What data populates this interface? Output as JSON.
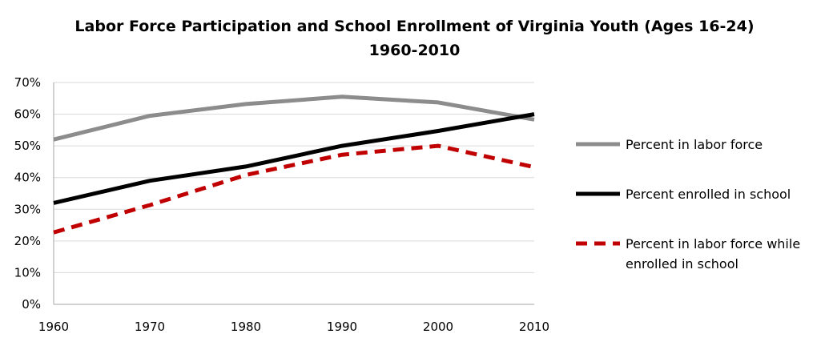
{
  "chart_data": {
    "type": "line",
    "title": "Labor Force Participation and School Enrollment of Virginia Youth (Ages 16-24)",
    "subtitle": "1960-2010",
    "x": [
      1960,
      1970,
      1980,
      1990,
      2000,
      2010
    ],
    "x_tick_labels": [
      "1960",
      "1970",
      "1980",
      "1990",
      "2000",
      "2010"
    ],
    "y_tick_labels": [
      "0%",
      "10%",
      "20%",
      "30%",
      "40%",
      "50%",
      "60%",
      "70%"
    ],
    "ylim": [
      0,
      70
    ],
    "y_ticks": [
      0,
      10,
      20,
      30,
      40,
      50,
      60,
      70
    ],
    "grid": true,
    "legend_position": "right",
    "series": [
      {
        "name": "Percent in labor force",
        "legend_lines": [
          "Percent in labor force"
        ],
        "values": [
          52,
          59.5,
          63.2,
          65.5,
          63.7,
          58.3
        ],
        "color": "#8c8c8c",
        "style": "solid"
      },
      {
        "name": "Percent enrolled in school",
        "legend_lines": [
          "Percent enrolled in school"
        ],
        "values": [
          32,
          39,
          43.5,
          50,
          54.7,
          60
        ],
        "color": "#000000",
        "style": "solid"
      },
      {
        "name": "Percent in labor force while enrolled in school",
        "legend_lines": [
          "Percent in labor force while",
          "enrolled in school"
        ],
        "values": [
          22.7,
          31.3,
          40.8,
          47.2,
          50,
          43.3
        ],
        "color": "#c00000",
        "style": "dashed"
      }
    ]
  }
}
